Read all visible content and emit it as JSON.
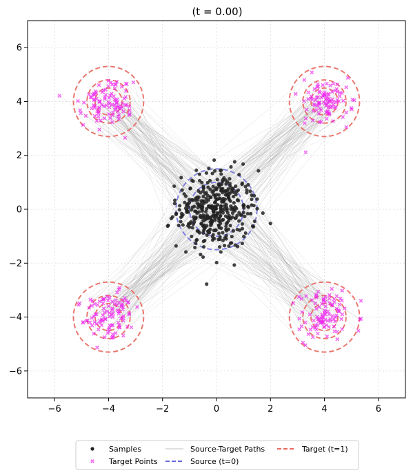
{
  "chart_data": {
    "type": "scatter",
    "title": "(t = 0.00)",
    "xlabel": "",
    "ylabel": "",
    "xlim": [
      -7,
      7
    ],
    "ylim": [
      -7,
      7
    ],
    "xticks": [
      -6,
      -4,
      -2,
      0,
      2,
      4,
      6
    ],
    "yticks": [
      -6,
      -4,
      -2,
      0,
      2,
      4,
      6
    ],
    "xtick_labels": [
      "−6",
      "−4",
      "−2",
      "0",
      "2",
      "4",
      "6"
    ],
    "ytick_labels": [
      "−6",
      "−4",
      "−2",
      "0",
      "2",
      "4",
      "6"
    ],
    "grid": true,
    "legend_position": "bottom-center",
    "source": {
      "center": [
        0,
        0
      ],
      "circle_radii": [
        1.0,
        1.5
      ],
      "sample_count": 400,
      "color": "#222222"
    },
    "targets": {
      "centers": [
        [
          -4,
          4
        ],
        [
          4,
          4
        ],
        [
          -4,
          -4
        ],
        [
          4,
          -4
        ]
      ],
      "circle_radii": [
        0.5,
        0.8,
        1.3
      ],
      "point_count": 400,
      "color": "#ee22ee",
      "circle_color": "#e8685f"
    },
    "paths": {
      "count": 400,
      "color": "#9a9a9a"
    },
    "series": [
      {
        "name": "Samples",
        "marker": "dot",
        "color": "#222222"
      },
      {
        "name": "Target Points",
        "marker": "x",
        "color": "#ee22ee"
      },
      {
        "name": "Source-Target Paths",
        "marker": "line",
        "color": "#9a9a9a"
      },
      {
        "name": "Source (t=0)",
        "marker": "dashed-line",
        "color": "#6666dd"
      },
      {
        "name": "Target (t=1)",
        "marker": "dashed-line",
        "color": "#e8685f"
      }
    ]
  }
}
